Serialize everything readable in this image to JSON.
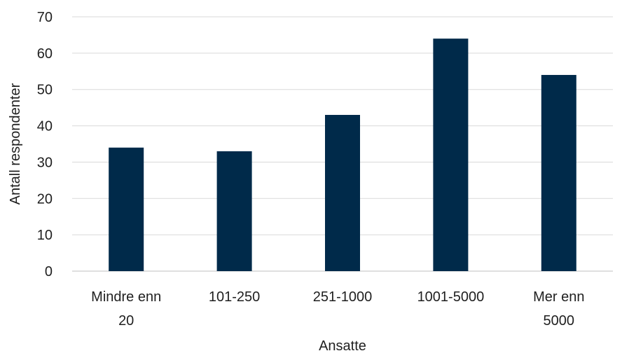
{
  "chart_data": {
    "type": "bar",
    "title": "",
    "xlabel": "Ansatte",
    "ylabel": "Antall respondenter",
    "categories": [
      [
        "Mindre enn",
        "20"
      ],
      [
        "101-250"
      ],
      [
        "251-1000"
      ],
      [
        "1001-5000"
      ],
      [
        "Mer enn",
        "5000"
      ]
    ],
    "values": [
      34,
      33,
      43,
      64,
      54
    ],
    "ylim": [
      0,
      70
    ],
    "yticks": [
      0,
      10,
      20,
      30,
      40,
      50,
      60,
      70
    ],
    "grid": true,
    "legend": "none",
    "bar_color": "#002a4a",
    "grid_color": "#d9d9d9",
    "axis_color": "#bfbfbf"
  }
}
